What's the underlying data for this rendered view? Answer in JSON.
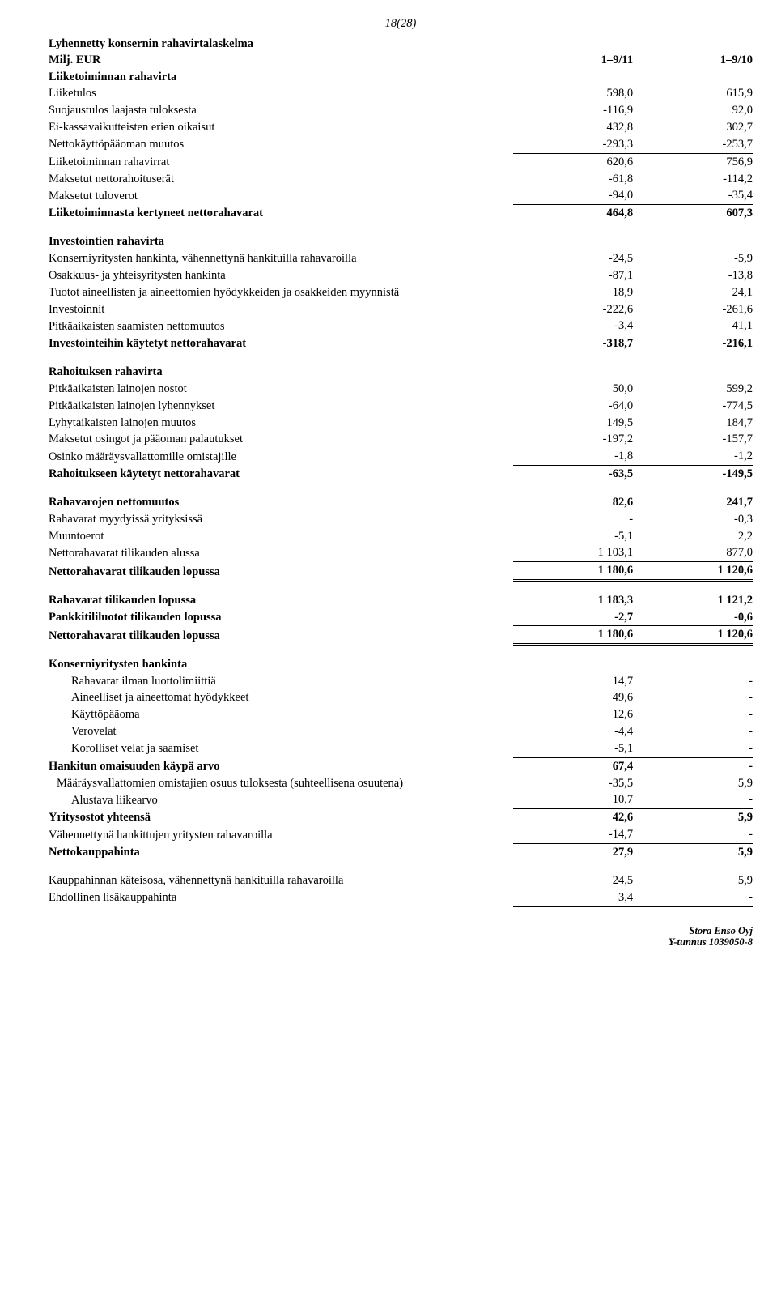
{
  "page_number_label": "18(28)",
  "title": "Lyhennetty konsernin rahavirtalaskelma",
  "column_header": {
    "label": "Milj. EUR",
    "col1": "1–9/11",
    "col2": "1–9/10"
  },
  "sections": [
    {
      "heading": "Liiketoiminnan rahavirta",
      "rows": [
        {
          "label": "Liiketulos",
          "c1": "598,0",
          "c2": "615,9"
        },
        {
          "label": "Suojaustulos laajasta tuloksesta",
          "c1": "-116,9",
          "c2": "92,0"
        },
        {
          "label": "Ei-kassavaikutteisten erien oikaisut",
          "c1": "432,8",
          "c2": "302,7"
        },
        {
          "label": "Nettokäyttöpääoman muutos",
          "c1": "-293,3",
          "c2": "-253,7",
          "underline": true
        },
        {
          "label": "Liiketoiminnan rahavirrat",
          "c1": "620,6",
          "c2": "756,9"
        },
        {
          "label": "Maksetut nettorahoituserät",
          "c1": "-61,8",
          "c2": "-114,2"
        },
        {
          "label": "Maksetut tuloverot",
          "c1": "-94,0",
          "c2": "-35,4",
          "underline": true
        },
        {
          "label": "Liiketoiminnasta kertyneet nettorahavarat",
          "c1": "464,8",
          "c2": "607,3",
          "bold": true
        }
      ]
    },
    {
      "heading": "Investointien rahavirta",
      "rows": [
        {
          "label": "Konserniyritysten hankinta, vähennettynä hankituilla rahavaroilla",
          "c1": "-24,5",
          "c2": "-5,9"
        },
        {
          "label": "Osakkuus- ja yhteisyritysten hankinta",
          "c1": "-87,1",
          "c2": "-13,8"
        },
        {
          "label": "Tuotot aineellisten ja aineettomien hyödykkeiden ja osakkeiden myynnistä",
          "c1": "18,9",
          "c2": "24,1"
        },
        {
          "label": "Investoinnit",
          "c1": "-222,6",
          "c2": "-261,6"
        },
        {
          "label": "Pitkäaikaisten saamisten nettomuutos",
          "c1": "-3,4",
          "c2": "41,1",
          "underline": true
        },
        {
          "label": "Investointeihin käytetyt nettorahavarat",
          "c1": "-318,7",
          "c2": "-216,1",
          "bold": true
        }
      ]
    },
    {
      "heading": "Rahoituksen rahavirta",
      "rows": [
        {
          "label": "Pitkäaikaisten lainojen nostot",
          "c1": "50,0",
          "c2": "599,2"
        },
        {
          "label": "Pitkäaikaisten lainojen lyhennykset",
          "c1": "-64,0",
          "c2": "-774,5"
        },
        {
          "label": "Lyhytaikaisten lainojen muutos",
          "c1": "149,5",
          "c2": "184,7"
        },
        {
          "label": "Maksetut osingot ja pääoman palautukset",
          "c1": "-197,2",
          "c2": "-157,7"
        },
        {
          "label": "Osinko määräysvallattomille omistajille",
          "c1": "-1,8",
          "c2": "-1,2",
          "underline": true
        },
        {
          "label": "Rahoitukseen käytetyt nettorahavarat",
          "c1": "-63,5",
          "c2": "-149,5",
          "bold": true
        }
      ]
    },
    {
      "rows": [
        {
          "label": "Rahavarojen nettomuutos",
          "c1": "82,6",
          "c2": "241,7",
          "bold": true
        },
        {
          "label": "Rahavarat myydyissä yrityksissä",
          "c1": "-",
          "c2": "-0,3"
        },
        {
          "label": "Muuntoerot",
          "c1": "-5,1",
          "c2": "2,2"
        },
        {
          "label": "Nettorahavarat tilikauden alussa",
          "c1": "1 103,1",
          "c2": "877,0",
          "underline": true
        },
        {
          "label": "Nettorahavarat tilikauden lopussa",
          "c1": "1 180,6",
          "c2": "1 120,6",
          "bold": true,
          "double": true
        }
      ]
    },
    {
      "rows": [
        {
          "label": "Rahavarat tilikauden lopussa",
          "c1": "1 183,3",
          "c2": "1 121,2",
          "bold": true
        },
        {
          "label": "Pankkitililuotot tilikauden lopussa",
          "c1": "-2,7",
          "c2": "-0,6",
          "bold": true,
          "underline": true
        },
        {
          "label": "Nettorahavarat tilikauden lopussa",
          "c1": "1 180,6",
          "c2": "1 120,6",
          "bold": true,
          "double": true
        }
      ]
    },
    {
      "heading": "Konserniyritysten hankinta",
      "rows": [
        {
          "label": "Rahavarat ilman luottolimiittiä",
          "c1": "14,7",
          "c2": "-",
          "indent": 1
        },
        {
          "label": "Aineelliset ja aineettomat hyödykkeet",
          "c1": "49,6",
          "c2": "-",
          "indent": 1
        },
        {
          "label": "Käyttöpääoma",
          "c1": "12,6",
          "c2": "-",
          "indent": 1
        },
        {
          "label": "Verovelat",
          "c1": "-4,4",
          "c2": "-",
          "indent": 1
        },
        {
          "label": "Korolliset velat ja saamiset",
          "c1": "-5,1",
          "c2": "-",
          "indent": 1,
          "underline": true
        },
        {
          "label": "Hankitun omaisuuden käypä arvo",
          "c1": "67,4",
          "c2": "-",
          "bold": true
        },
        {
          "label": "Määräysvallattomien omistajien osuus tuloksesta (suhteellisena osuutena)",
          "c1": "-35,5",
          "c2": "5,9",
          "indent": 1,
          "hanging": true
        },
        {
          "label": "Alustava liikearvo",
          "c1": "10,7",
          "c2": "-",
          "indent": 1,
          "underline": true
        },
        {
          "label": "Yritysostot yhteensä",
          "c1": "42,6",
          "c2": "5,9",
          "bold": true
        },
        {
          "label": "Vähennettynä hankittujen yritysten rahavaroilla",
          "c1": "-14,7",
          "c2": "-",
          "underline": true
        },
        {
          "label": "Nettokauppahinta",
          "c1": "27,9",
          "c2": "5,9",
          "bold": true
        }
      ]
    },
    {
      "rows": [
        {
          "label": "Kauppahinnan käteisosa, vähennettynä hankituilla rahavaroilla",
          "c1": "24,5",
          "c2": "5,9"
        },
        {
          "label": "Ehdollinen lisäkauppahinta",
          "c1": "3,4",
          "c2": "-",
          "underline": true
        }
      ]
    }
  ],
  "footer": {
    "line1": "Stora Enso Oyj",
    "line2": "Y-tunnus 1039050-8"
  }
}
